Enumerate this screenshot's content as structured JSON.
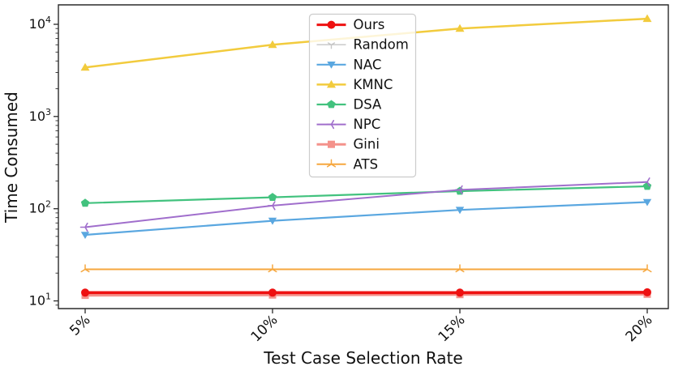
{
  "figure": {
    "background": "#ffffff",
    "spine_color": "#2a2a2a"
  },
  "chart_data": {
    "type": "line",
    "title": "",
    "xlabel": "Test Case Selection Rate",
    "ylabel": "Time Consumed",
    "x_categories": [
      "5%",
      "10%",
      "15%",
      "20%"
    ],
    "x_tick_rotation_deg": 45,
    "y_scale": "log",
    "y_tick_exponents": [
      1,
      2,
      3,
      4
    ],
    "ylim": [
      8.5,
      16000
    ],
    "grid": false,
    "legend": {
      "position": "upper-center",
      "frame": true,
      "frame_color": "#cccccc",
      "background": "rgba(255,255,255,0.8)"
    },
    "series": [
      {
        "name": "Ours",
        "color": "#ee1111",
        "marker": "circle",
        "line_width": 3.6,
        "values": [
          12.3,
          12.3,
          12.3,
          12.4
        ]
      },
      {
        "name": "Random",
        "color": "#c6c6c6",
        "marker": "tri-down",
        "line_width": 1.4,
        "values": [
          12.3,
          12.3,
          12.3,
          12.4
        ]
      },
      {
        "name": "NAC",
        "color": "#5aa7e0",
        "marker": "triangle-down",
        "line_width": 2.2,
        "values": [
          52,
          74,
          97,
          118
        ]
      },
      {
        "name": "KMNC",
        "color": "#f2cb3d",
        "marker": "triangle-up",
        "line_width": 2.5,
        "values": [
          3400,
          6000,
          9000,
          11500
        ]
      },
      {
        "name": "DSA",
        "color": "#42c27e",
        "marker": "pentagon",
        "line_width": 2.2,
        "values": [
          115,
          133,
          155,
          175
        ]
      },
      {
        "name": "NPC",
        "color": "#a06ecc",
        "marker": "tri-left",
        "line_width": 2.0,
        "values": [
          63,
          108,
          160,
          195
        ]
      },
      {
        "name": "Gini",
        "color": "#f4928b",
        "marker": "square",
        "line_width": 3.2,
        "values": [
          11.5,
          11.6,
          11.7,
          11.8
        ]
      },
      {
        "name": "ATS",
        "color": "#f6a73e",
        "marker": "star",
        "line_width": 2.0,
        "values": [
          22,
          22,
          22,
          22
        ]
      }
    ],
    "draw_order": [
      "Random",
      "Gini",
      "Ours",
      "NAC",
      "KMNC",
      "DSA",
      "NPC",
      "ATS"
    ]
  }
}
